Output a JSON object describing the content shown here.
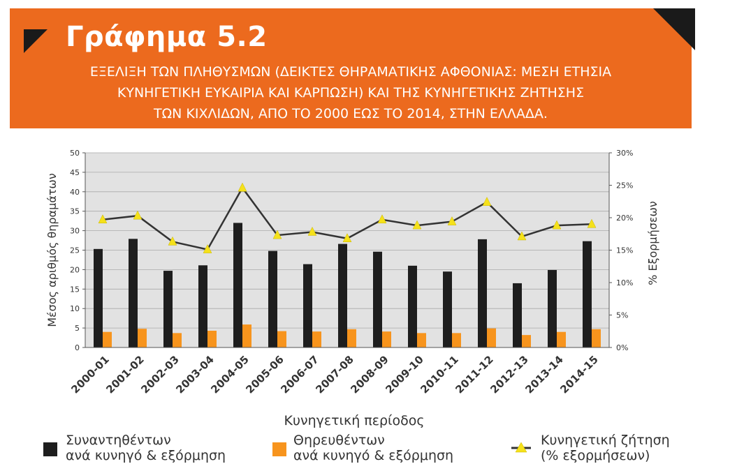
{
  "header": {
    "title": "Γράφημα 5.2",
    "subtitle_line1": "ΕΞΕΛΙΞΗ ΤΩΝ ΠΛΗΘΥΣΜΩΝ (ΔΕΙΚΤΕΣ ΘΗΡΑΜΑΤΙΚΗΣ ΑΦΘΟΝΙΑΣ: ΜΕΣΗ ΕΤΗΣΙΑ",
    "subtitle_line2": "ΚΥΝΗΓΕΤΙΚΗ ΕΥΚΑΙΡΙΑ ΚΑΙ ΚΑΡΠΩΣΗ) ΚΑΙ ΤΗΣ ΚΥΝΗΓΕΤΙΚΗΣ ΖΗΤΗΣΗΣ",
    "subtitle_line3": "ΤΩΝ ΚΙΧΛΙΔΩΝ, ΑΠΟ ΤΟ 2000 ΕΩΣ ΤΟ 2014, ΣΤΗΝ ΕΛΛΑΔΑ."
  },
  "colors": {
    "banner": "#ec6a1e",
    "bar_encountered": "#1e1e1e",
    "bar_harvested": "#f7941d",
    "line": "#333333",
    "marker": "#f5e11b"
  },
  "chart_data": {
    "type": "bar",
    "categories": [
      "2000-01",
      "2001-02",
      "2002-03",
      "2003-04",
      "2004-05",
      "2005-06",
      "2006-07",
      "2007-08",
      "2008-09",
      "2009-10",
      "2010-11",
      "2011-12",
      "2012-13",
      "2013-14",
      "2014-15"
    ],
    "series": [
      {
        "name": "Συναντηθέντων ανά κυνηγό & εξόρμηση",
        "axis": "left",
        "values": [
          25.3,
          27.9,
          19.7,
          21.1,
          32.0,
          24.8,
          21.4,
          26.6,
          24.6,
          21.0,
          19.5,
          27.8,
          16.5,
          19.9,
          27.3
        ]
      },
      {
        "name": "Θηρευθέντων ανά κυνηγό & εξόρμηση",
        "axis": "left",
        "values": [
          4.0,
          4.8,
          3.7,
          4.3,
          5.9,
          4.2,
          4.1,
          4.7,
          4.1,
          3.7,
          3.7,
          4.9,
          3.2,
          4.0,
          4.7
        ]
      },
      {
        "name": "Κυνηγετική ζήτηση (% εξορμήσεων)",
        "axis": "right",
        "type": "line",
        "values": [
          19.7,
          20.3,
          16.3,
          15.1,
          24.6,
          17.3,
          17.8,
          16.8,
          19.7,
          18.8,
          19.4,
          22.4,
          17.1,
          18.8,
          19.0
        ]
      }
    ],
    "xlabel": "Κυνηγετική περίοδος",
    "ylabel": "Μέσος αριθμός θηραμάτων",
    "y2label": "% Εξορμήσεων",
    "ylim": [
      0,
      50
    ],
    "y2lim": [
      0,
      30
    ],
    "yticks": [
      "0",
      "5",
      "10",
      "15",
      "20",
      "25",
      "30",
      "35",
      "40",
      "45",
      "50"
    ],
    "y2ticks": [
      "0%",
      "5%",
      "10%",
      "15%",
      "20%",
      "25%",
      "30%"
    ],
    "grid": true,
    "legend_position": "bottom"
  },
  "legend": {
    "item1_line1": "Συναντηθέντων",
    "item1_line2": "ανά κυνηγό & εξόρμηση",
    "item2_line1": "Θηρευθέντων",
    "item2_line2": "ανά κυνηγό & εξόρμηση",
    "item3_line1": "Κυνηγετική ζήτηση",
    "item3_line2": "(% εξορμήσεων)"
  }
}
